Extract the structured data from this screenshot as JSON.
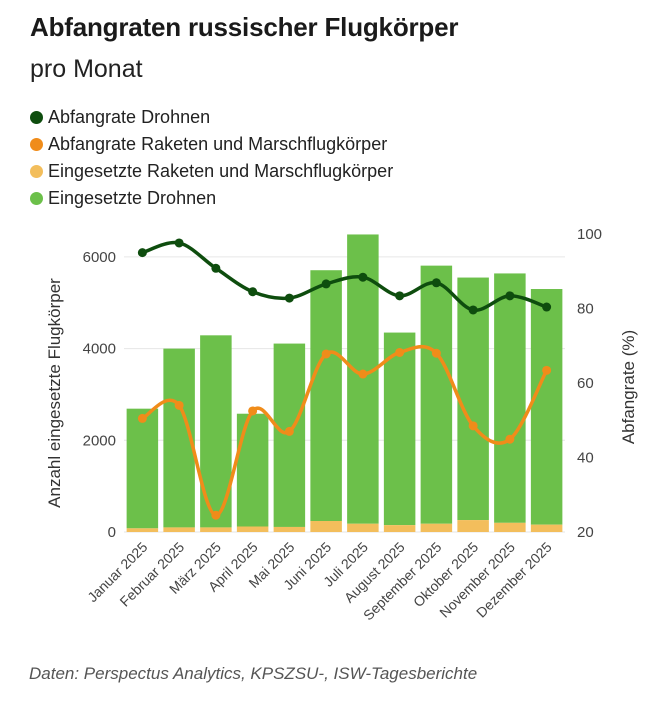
{
  "title": "Abfangraten russischer Flugkörper",
  "subtitle": "pro Monat",
  "legend": [
    {
      "label": "Abfangrate Drohnen",
      "color": "#0e4d0e"
    },
    {
      "label": "Abfangrate Raketen und Marschflugkörper",
      "color": "#f08c1a"
    },
    {
      "label": "Eingesetzte Raketen und Marschflugkörper",
      "color": "#f3be5c"
    },
    {
      "label": "Eingesetzte Drohnen",
      "color": "#6cc04a"
    }
  ],
  "footer": "Daten: Perspectus Analytics, KPSZSU-, ISW-Tagesberichte",
  "chart_data": {
    "type": "bar",
    "categories": [
      "Januar 2025",
      "Februar 2025",
      "März 2025",
      "April 2025",
      "Mai 2025",
      "Juni 2025",
      "Juli 2025",
      "August 2025",
      "September 2025",
      "Oktober 2025",
      "November 2025",
      "Dezember 2025"
    ],
    "ylabel_left": "Anzahl eingesetzte Flugkörper",
    "ylabel_right": "Abfangrate (%)",
    "ylim_left": [
      0,
      6500
    ],
    "ylim_right": [
      20,
      100
    ],
    "yticks_left": [
      0,
      2000,
      4000,
      6000
    ],
    "yticks_right": [
      20,
      40,
      60,
      80,
      100
    ],
    "grid": true,
    "series": [
      {
        "name": "Eingesetzte Drohnen",
        "kind": "bar-stack",
        "color": "#6cc04a",
        "values": [
          2610,
          3900,
          4190,
          2460,
          4000,
          5470,
          6310,
          4200,
          5630,
          5290,
          5440,
          5140
        ]
      },
      {
        "name": "Eingesetzte Raketen und Marschflugkörper",
        "kind": "bar-base",
        "color": "#f3be5c",
        "values": [
          80,
          100,
          100,
          120,
          110,
          240,
          180,
          150,
          180,
          260,
          200,
          160
        ]
      },
      {
        "name": "Abfangrate Drohnen",
        "kind": "line",
        "axis": "right",
        "color": "#0e4d0e",
        "values": [
          95.0,
          97.6,
          90.8,
          84.5,
          82.8,
          86.6,
          88.4,
          83.4,
          86.9,
          79.6,
          83.4,
          80.4
        ]
      },
      {
        "name": "Abfangrate Raketen und Marschflugkörper",
        "kind": "line",
        "axis": "right",
        "color": "#f08c1a",
        "values": [
          50.5,
          54.0,
          24.5,
          52.5,
          47.0,
          67.8,
          62.4,
          68.2,
          68.0,
          48.5,
          44.9,
          63.4
        ]
      }
    ]
  }
}
